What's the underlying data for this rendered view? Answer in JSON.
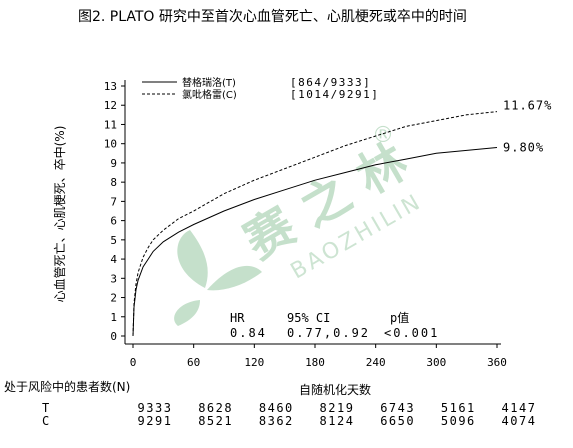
{
  "title": "图2.   PLATO 研究中至首次心血管死亡、心肌梗死或卒中的时间",
  "watermark": {
    "chinese": "赛 之 林",
    "latin": "BAOZHILIN",
    "registered": "®",
    "color": "#5aa76a"
  },
  "chart_data": {
    "type": "line",
    "ylabel": "心血管死亡、心肌梗死、卒中(%)",
    "xlabel": "自随机化天数",
    "xlim": [
      0,
      360
    ],
    "ylim": [
      0,
      13
    ],
    "x_ticks": [
      0,
      60,
      120,
      180,
      240,
      300,
      360
    ],
    "y_ticks": [
      0,
      1,
      2,
      3,
      4,
      5,
      6,
      7,
      8,
      9,
      10,
      11,
      12,
      13
    ],
    "legend_position": "top-left",
    "series": [
      {
        "name": "替格瑞洛(T)",
        "count": "[864/9333]",
        "end_label": "9.80%",
        "style": "solid",
        "x": [
          0,
          1,
          3,
          5,
          10,
          15,
          20,
          30,
          45,
          60,
          90,
          120,
          150,
          180,
          210,
          240,
          270,
          300,
          330,
          360
        ],
        "y": [
          0,
          1.5,
          2.4,
          2.9,
          3.6,
          4.0,
          4.4,
          4.9,
          5.4,
          5.8,
          6.5,
          7.1,
          7.6,
          8.1,
          8.5,
          8.9,
          9.2,
          9.5,
          9.65,
          9.8
        ]
      },
      {
        "name": "氯吡格雷(C)",
        "count": "[1014/9291]",
        "end_label": "11.67%",
        "style": "dashed",
        "x": [
          0,
          1,
          3,
          5,
          10,
          15,
          20,
          30,
          45,
          60,
          90,
          120,
          150,
          180,
          210,
          240,
          270,
          300,
          330,
          360
        ],
        "y": [
          0,
          1.7,
          2.7,
          3.3,
          4.1,
          4.6,
          5.0,
          5.5,
          6.1,
          6.5,
          7.4,
          8.1,
          8.7,
          9.3,
          9.9,
          10.4,
          10.9,
          11.2,
          11.5,
          11.67
        ]
      }
    ],
    "stats": {
      "headers": [
        "HR",
        "95% CI",
        "p值"
      ],
      "values": [
        "0.84",
        "0.77,0.92",
        "<0.001"
      ]
    }
  },
  "risk_table": {
    "label": "处于风险中的患者数(N)",
    "rows": [
      {
        "group": "T",
        "values": [
          "9333",
          "8628",
          "8460",
          "8219",
          "6743",
          "5161",
          "4147"
        ]
      },
      {
        "group": "C",
        "values": [
          "9291",
          "8521",
          "8362",
          "8124",
          "6650",
          "5096",
          "4074"
        ]
      }
    ]
  }
}
